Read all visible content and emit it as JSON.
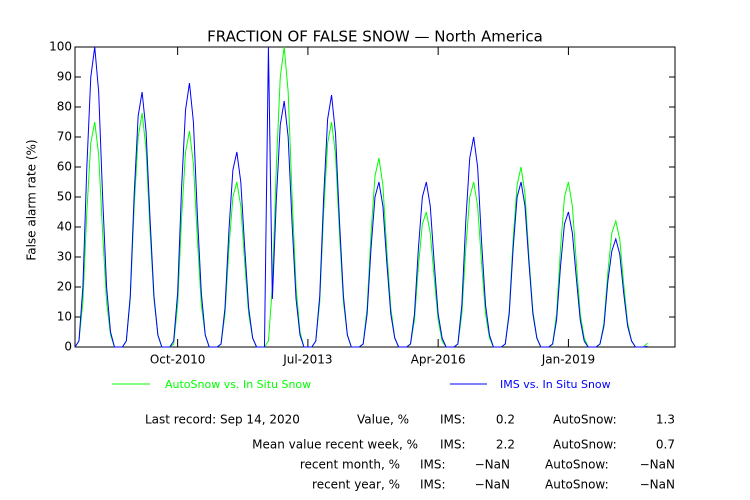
{
  "chart_data": {
    "type": "line",
    "title": "FRACTION OF FALSE SNOW — North America",
    "ylabel": "False alarm rate (%)",
    "x": [
      "2008-08",
      "2008-09",
      "2008-10",
      "2008-11",
      "2008-12",
      "2009-01",
      "2009-02",
      "2009-03",
      "2009-04",
      "2009-05",
      "2009-06",
      "2009-07",
      "2009-08",
      "2009-09",
      "2009-10",
      "2009-11",
      "2009-12",
      "2010-01",
      "2010-02",
      "2010-03",
      "2010-04",
      "2010-05",
      "2010-06",
      "2010-07",
      "2010-08",
      "2010-09",
      "2010-10",
      "2010-11",
      "2010-12",
      "2011-01",
      "2011-02",
      "2011-03",
      "2011-04",
      "2011-05",
      "2011-06",
      "2011-07",
      "2011-08",
      "2011-09",
      "2011-10",
      "2011-11",
      "2011-12",
      "2012-01",
      "2012-02",
      "2012-03",
      "2012-04",
      "2012-05",
      "2012-06",
      "2012-07",
      "2012-08",
      "2012-09",
      "2012-10",
      "2012-11",
      "2012-12",
      "2013-01",
      "2013-02",
      "2013-03",
      "2013-04",
      "2013-05",
      "2013-06",
      "2013-07",
      "2013-08",
      "2013-09",
      "2013-10",
      "2013-11",
      "2013-12",
      "2014-01",
      "2014-02",
      "2014-03",
      "2014-04",
      "2014-05",
      "2014-06",
      "2014-07",
      "2014-08",
      "2014-09",
      "2014-10",
      "2014-11",
      "2014-12",
      "2015-01",
      "2015-02",
      "2015-03",
      "2015-04",
      "2015-05",
      "2015-06",
      "2015-07",
      "2015-08",
      "2015-09",
      "2015-10",
      "2015-11",
      "2015-12",
      "2016-01",
      "2016-02",
      "2016-03",
      "2016-04",
      "2016-05",
      "2016-06",
      "2016-07",
      "2016-08",
      "2016-09",
      "2016-10",
      "2016-11",
      "2016-12",
      "2017-01",
      "2017-02",
      "2017-03",
      "2017-04",
      "2017-05",
      "2017-06",
      "2017-07",
      "2017-08",
      "2017-09",
      "2017-10",
      "2017-11",
      "2017-12",
      "2018-01",
      "2018-02",
      "2018-03",
      "2018-04",
      "2018-05",
      "2018-06",
      "2018-07",
      "2018-08",
      "2018-09",
      "2018-10",
      "2018-11",
      "2018-12",
      "2019-01",
      "2019-02",
      "2019-03",
      "2019-04",
      "2019-05",
      "2019-06",
      "2019-07",
      "2019-08",
      "2019-09",
      "2019-10",
      "2019-11",
      "2019-12",
      "2020-01",
      "2020-02",
      "2020-03",
      "2020-04",
      "2020-05",
      "2020-06",
      "2020-07",
      "2020-08",
      "2020-09"
    ],
    "series": [
      {
        "name": "AutoSnow vs. In Situ Snow",
        "color": "#00ff00",
        "values": [
          0,
          2,
          15,
          45,
          68,
          75,
          64,
          38,
          15,
          4,
          0,
          0,
          0,
          2,
          16,
          47,
          70,
          78,
          66,
          39,
          16,
          4,
          0,
          0,
          0,
          1,
          14,
          43,
          65,
          72,
          61,
          36,
          14,
          4,
          0,
          0,
          0,
          1,
          11,
          33,
          50,
          55,
          47,
          28,
          11,
          3,
          0,
          0,
          0,
          2,
          20,
          60,
          90,
          100,
          85,
          50,
          20,
          5,
          0,
          0,
          0,
          2,
          15,
          45,
          68,
          75,
          64,
          38,
          15,
          4,
          0,
          0,
          0,
          1,
          13,
          38,
          57,
          63,
          54,
          32,
          13,
          3,
          0,
          0,
          0,
          1,
          9,
          27,
          41,
          45,
          38,
          23,
          9,
          2,
          0,
          0,
          0,
          1,
          11,
          33,
          50,
          55,
          47,
          28,
          11,
          3,
          0,
          0,
          0,
          1,
          12,
          36,
          54,
          60,
          51,
          30,
          12,
          3,
          0,
          0,
          0,
          1,
          11,
          33,
          50,
          55,
          47,
          28,
          11,
          3,
          0,
          0,
          0,
          1,
          8,
          25,
          38,
          42,
          36,
          21,
          8,
          2,
          0,
          0,
          0,
          1.3
        ]
      },
      {
        "name": "IMS vs. In Situ Snow",
        "color": "#0000ff",
        "values": [
          0,
          2,
          20,
          60,
          90,
          100,
          85,
          50,
          20,
          5,
          0,
          0,
          0,
          2,
          17,
          51,
          77,
          85,
          72,
          43,
          17,
          4,
          0,
          0,
          0,
          2,
          18,
          53,
          79,
          88,
          75,
          44,
          18,
          4,
          0,
          0,
          0,
          1,
          13,
          39,
          59,
          65,
          55,
          33,
          13,
          3,
          0,
          0,
          0,
          100,
          16,
          49,
          74,
          82,
          70,
          41,
          16,
          4,
          0,
          0,
          0,
          2,
          17,
          50,
          76,
          84,
          71,
          42,
          17,
          4,
          0,
          0,
          0,
          1,
          11,
          33,
          50,
          55,
          47,
          28,
          11,
          3,
          0,
          0,
          0,
          1,
          11,
          33,
          50,
          55,
          47,
          28,
          11,
          3,
          0,
          0,
          0,
          1,
          14,
          42,
          63,
          70,
          60,
          35,
          14,
          4,
          0,
          0,
          0,
          1,
          11,
          33,
          50,
          55,
          47,
          28,
          11,
          3,
          0,
          0,
          0,
          1,
          9,
          27,
          41,
          45,
          38,
          23,
          9,
          2,
          0,
          0,
          0,
          1,
          7,
          22,
          32,
          36,
          31,
          18,
          7,
          2,
          0,
          0,
          0,
          0.2
        ]
      }
    ],
    "xlim": [
      "2008-08",
      "2021-04"
    ],
    "xticks": [
      {
        "value": "2010-10",
        "label": "Oct-2010"
      },
      {
        "value": "2013-07",
        "label": "Jul-2013"
      },
      {
        "value": "2016-04",
        "label": "Apr-2016"
      },
      {
        "value": "2019-01",
        "label": "Jan-2019"
      }
    ],
    "ylim": [
      0,
      100
    ],
    "yticks": [
      0,
      10,
      20,
      30,
      40,
      50,
      60,
      70,
      80,
      90,
      100
    ]
  },
  "stats": {
    "rows": [
      [
        "Last record: Sep 14, 2020",
        "Value, %",
        "IMS:",
        0.2,
        "AutoSnow:",
        1.3
      ],
      [
        "Mean value recent week, %",
        "IMS:",
        2.2,
        "AutoSnow:",
        0.7
      ],
      [
        "recent month, %",
        "IMS:",
        "−NaN",
        "AutoSnow:",
        "−NaN"
      ],
      [
        "recent year, %",
        "IMS:",
        "−NaN",
        "AutoSnow:",
        "−NaN"
      ]
    ]
  }
}
